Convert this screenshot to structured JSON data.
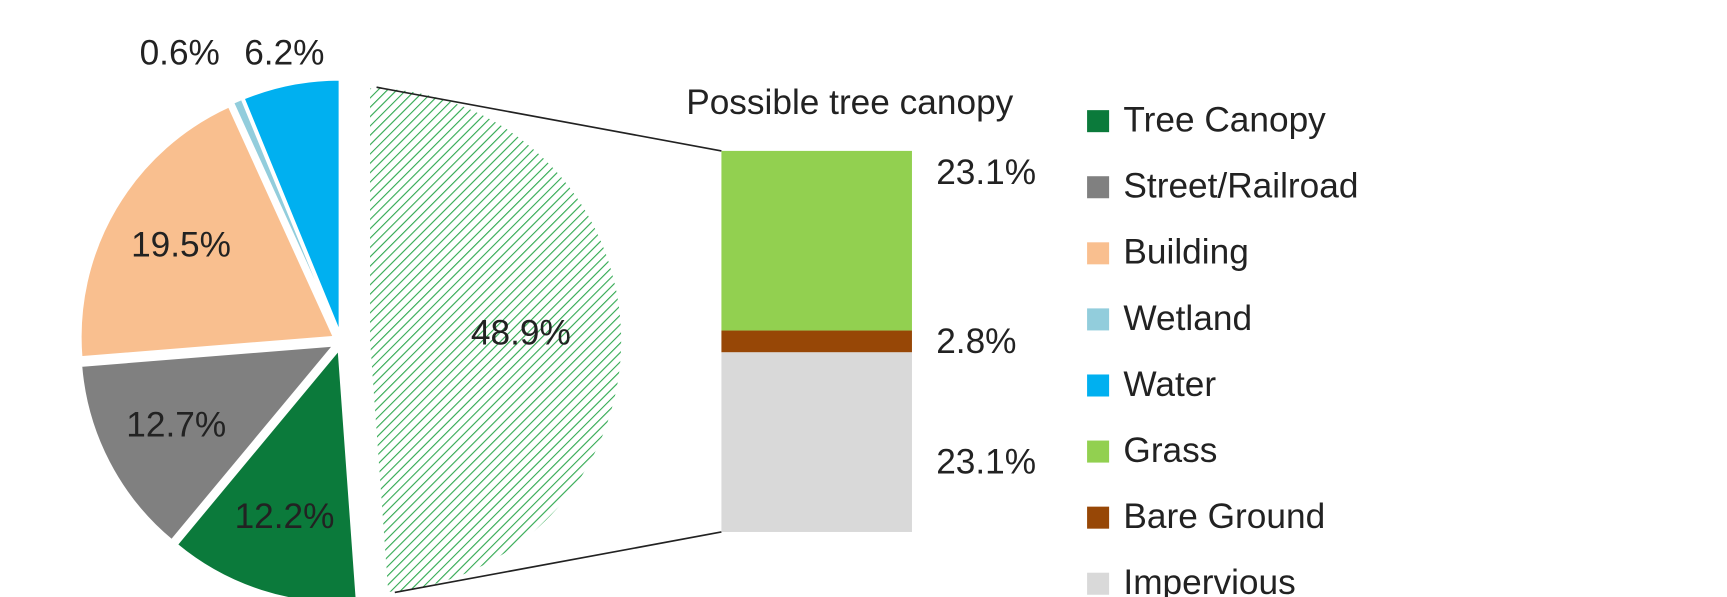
{
  "chart_data": {
    "type": "pie",
    "categories": [
      "Tree Canopy",
      "Street/Railroad",
      "Building",
      "Wetland",
      "Water"
    ],
    "values": [
      12.2,
      12.7,
      19.5,
      0.6,
      6.2
    ],
    "value_labels": [
      "12.2%",
      "12.7%",
      "19.5%",
      "0.6%",
      "6.2%"
    ],
    "colors": [
      "#0b7a3b",
      "#808080",
      "#f9bf8f",
      "#92cddc",
      "#00b0f0"
    ],
    "breakout": {
      "title": "Possible tree canopy",
      "value": 48.9,
      "value_label": "48.9%",
      "color": "#2fa84f",
      "categories": [
        "Grass",
        "Bare Ground",
        "Impervious"
      ],
      "values": [
        23.1,
        2.8,
        23.1
      ],
      "value_labels": [
        "23.1%",
        "2.8%",
        "23.1%"
      ],
      "colors": [
        "#92d050",
        "#974706",
        "#d9d9d9"
      ]
    }
  }
}
